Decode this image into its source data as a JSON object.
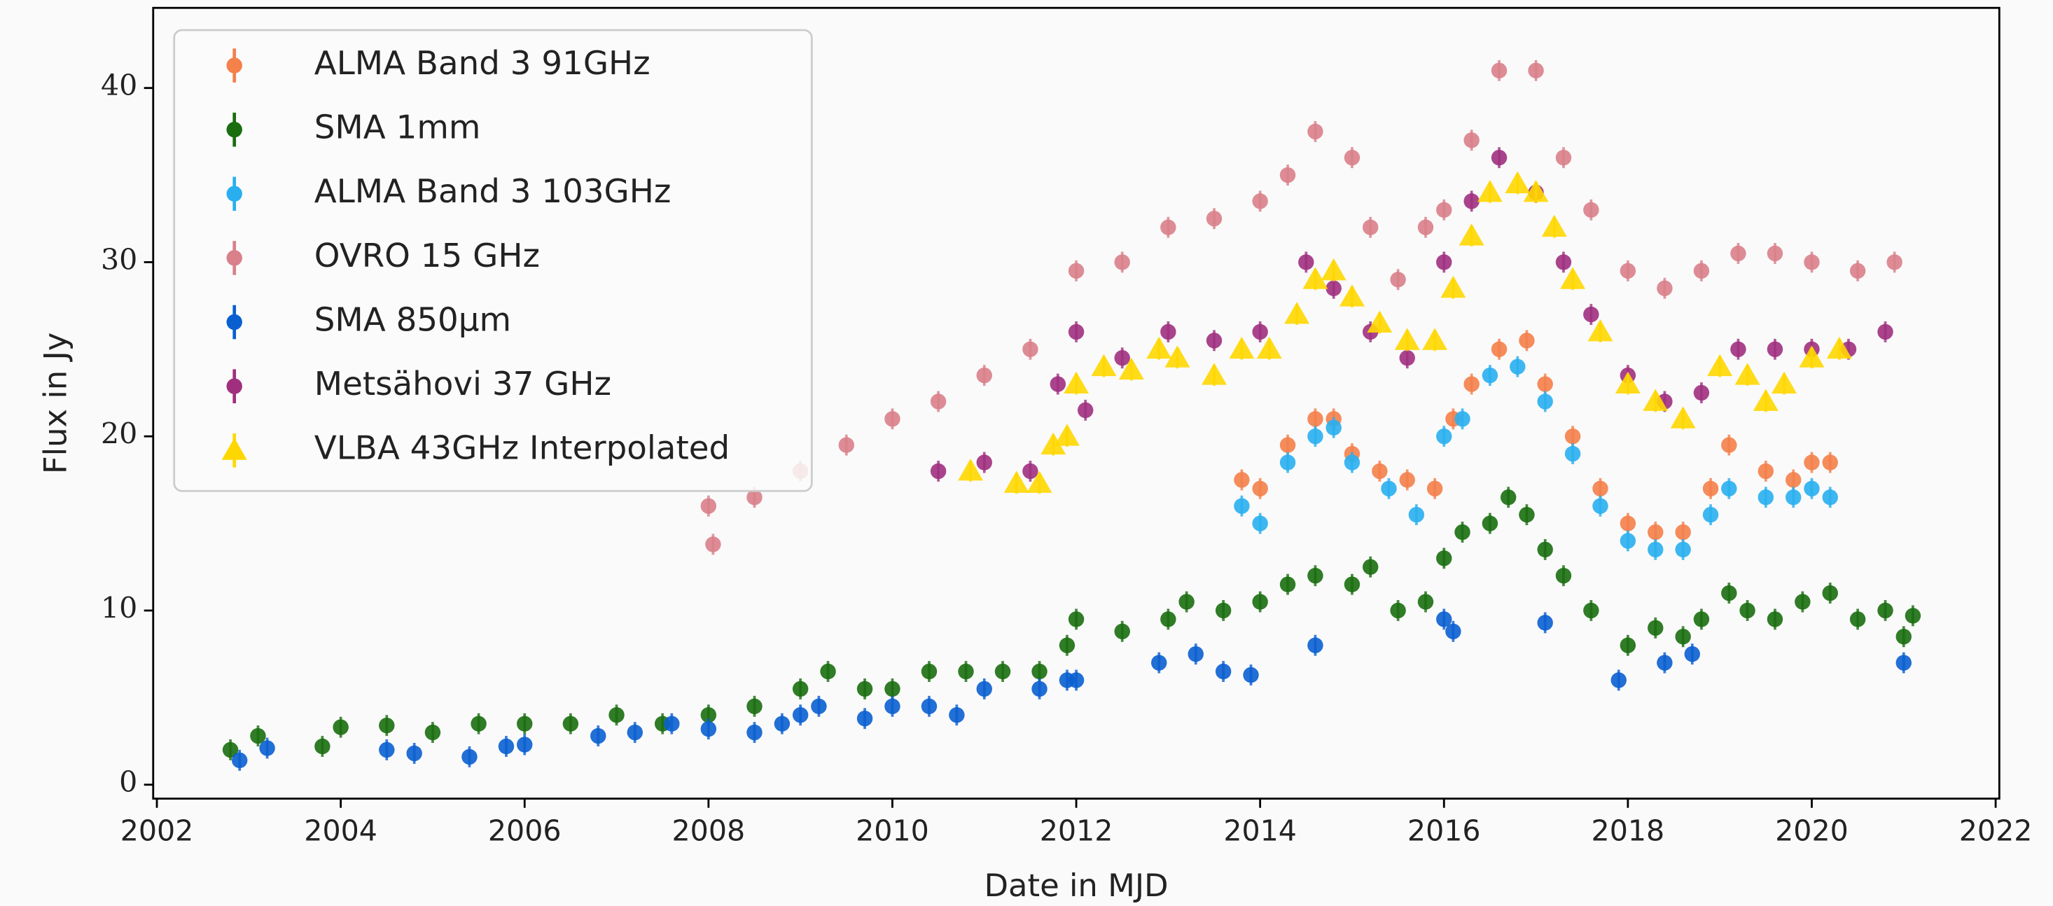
{
  "chart_data": {
    "type": "scatter",
    "xlabel": "Date in MJD",
    "ylabel": "Flux in Jy",
    "xlim": [
      2001.96,
      2022.04
    ],
    "ylim": [
      -0.8,
      44.6
    ],
    "xticks": [
      2002,
      2004,
      2006,
      2008,
      2010,
      2012,
      2014,
      2016,
      2018,
      2020,
      2022
    ],
    "yticks": [
      0,
      10,
      20,
      30,
      40
    ],
    "legend": "upper left",
    "series": [
      {
        "name": "ALMA Band 3 91GHz",
        "color": "#f4804a",
        "marker": "circle",
        "x": [
          2013.8,
          2014,
          2014.3,
          2014.6,
          2014.8,
          2015,
          2015.3,
          2015.6,
          2015.9,
          2016.1,
          2016.3,
          2016.6,
          2016.9,
          2017.1,
          2017.4,
          2017.7,
          2018,
          2018.3,
          2018.6,
          2018.9,
          2019.1,
          2019.5,
          2019.8,
          2020,
          2020.2
        ],
        "values": [
          17.5,
          17,
          19.5,
          21,
          21,
          19,
          18,
          17.5,
          17,
          21,
          23,
          25,
          25.5,
          23,
          20,
          17,
          15,
          14.5,
          14.5,
          17,
          19.5,
          18,
          17.5,
          18.5,
          18.5
        ]
      },
      {
        "name": "SMA 1mm",
        "color": "#1a6e10",
        "marker": "circle",
        "x": [
          2002.8,
          2003.1,
          2003.8,
          2004,
          2004.5,
          2005,
          2005.5,
          2006,
          2006.5,
          2007,
          2007.5,
          2008,
          2008.5,
          2009,
          2009.3,
          2009.7,
          2010,
          2010.4,
          2010.8,
          2011.2,
          2011.6,
          2011.9,
          2012,
          2012.5,
          2013,
          2013.2,
          2013.6,
          2014,
          2014.3,
          2014.6,
          2015,
          2015.2,
          2015.5,
          2015.8,
          2016,
          2016.2,
          2016.5,
          2016.7,
          2016.9,
          2017.1,
          2017.3,
          2017.6,
          2018,
          2018.3,
          2018.6,
          2018.8,
          2019.1,
          2019.3,
          2019.6,
          2019.9,
          2020.2,
          2020.5,
          2020.8,
          2021,
          2021.1
        ],
        "values": [
          2,
          2.8,
          2.2,
          3.3,
          3.4,
          3,
          3.5,
          3.5,
          3.5,
          4,
          3.5,
          4,
          4.5,
          5.5,
          6.5,
          5.5,
          5.5,
          6.5,
          6.5,
          6.5,
          6.5,
          8,
          9.5,
          8.8,
          9.5,
          10.5,
          10,
          10.5,
          11.5,
          12,
          11.5,
          12.5,
          10,
          10.5,
          13,
          14.5,
          15,
          16.5,
          15.5,
          13.5,
          12,
          10,
          8,
          9,
          8.5,
          9.5,
          11,
          10,
          9.5,
          10.5,
          11,
          9.5,
          10,
          8.5,
          9.7
        ]
      },
      {
        "name": "ALMA Band 3 103GHz",
        "color": "#29aff0",
        "marker": "circle",
        "x": [
          2013.8,
          2014,
          2014.3,
          2014.6,
          2014.8,
          2015,
          2015.4,
          2015.7,
          2016,
          2016.2,
          2016.5,
          2016.8,
          2017.1,
          2017.4,
          2017.7,
          2018,
          2018.3,
          2018.6,
          2018.9,
          2019.1,
          2019.5,
          2019.8,
          2020,
          2020.2
        ],
        "values": [
          16,
          15,
          18.5,
          20,
          20.5,
          18.5,
          17,
          15.5,
          20,
          21,
          23.5,
          24,
          22,
          19,
          16,
          14,
          13.5,
          13.5,
          15.5,
          17,
          16.5,
          16.5,
          17,
          16.5
        ]
      },
      {
        "name": "OVRO 15 GHz",
        "color": "#d9808a",
        "marker": "circle",
        "x": [
          2008,
          2008.05,
          2008.5,
          2009,
          2009.5,
          2010,
          2010.5,
          2011,
          2011.5,
          2012,
          2012.5,
          2013,
          2013.5,
          2014,
          2014.3,
          2014.6,
          2015,
          2015.2,
          2015.5,
          2015.8,
          2016,
          2016.3,
          2016.6,
          2017,
          2017.3,
          2017.6,
          2018,
          2018.4,
          2018.8,
          2019.2,
          2019.6,
          2020,
          2020.5,
          2020.9
        ],
        "values": [
          16,
          13.8,
          16.5,
          18,
          19.5,
          21,
          22,
          23.5,
          25,
          29.5,
          30,
          32,
          32.5,
          33.5,
          35,
          37.5,
          36,
          32,
          29,
          32,
          33,
          37,
          41,
          41,
          36,
          33,
          29.5,
          28.5,
          29.5,
          30.5,
          30.5,
          30,
          29.5,
          30
        ]
      },
      {
        "name": "SMA 850μm",
        "color": "#0a5fd0",
        "marker": "circle",
        "x": [
          2002.9,
          2003.2,
          2004.5,
          2004.8,
          2005.4,
          2005.8,
          2006,
          2006.8,
          2007.2,
          2007.6,
          2008,
          2008.5,
          2008.8,
          2009,
          2009.2,
          2009.7,
          2010,
          2010.4,
          2010.7,
          2011,
          2011.6,
          2011.9,
          2012,
          2012.9,
          2013.3,
          2013.6,
          2013.9,
          2014.6,
          2016,
          2016.1,
          2017.1,
          2017.9,
          2018.4,
          2018.7,
          2021
        ],
        "values": [
          1.4,
          2.1,
          2,
          1.8,
          1.6,
          2.2,
          2.3,
          2.8,
          3,
          3.5,
          3.2,
          3,
          3.5,
          4,
          4.5,
          3.8,
          4.5,
          4.5,
          4,
          5.5,
          5.5,
          6,
          6,
          7,
          7.5,
          6.5,
          6.3,
          8,
          9.5,
          8.8,
          9.3,
          6,
          7,
          7.5,
          7
        ]
      },
      {
        "name": "Metsähovi 37 GHz",
        "color": "#a0307f",
        "marker": "circle",
        "x": [
          2010.5,
          2011,
          2011.5,
          2011.8,
          2012,
          2012.1,
          2012.5,
          2013,
          2013.5,
          2014,
          2014.5,
          2014.8,
          2015.2,
          2015.6,
          2016,
          2016.3,
          2016.6,
          2017,
          2017.3,
          2017.6,
          2018,
          2018.4,
          2018.8,
          2019.2,
          2019.6,
          2020,
          2020.4,
          2020.8
        ],
        "values": [
          18,
          18.5,
          18,
          23,
          26,
          21.5,
          24.5,
          26,
          25.5,
          26,
          30,
          28.5,
          26,
          24.5,
          30,
          33.5,
          36,
          34,
          30,
          27,
          23.5,
          22,
          22.5,
          25,
          25,
          25,
          25,
          26
        ]
      },
      {
        "name": "VLBA 43GHz Interpolated",
        "color": "#ffd700",
        "marker": "triangle",
        "x": [
          2010.85,
          2011.35,
          2011.6,
          2011.75,
          2011.9,
          2012,
          2012.3,
          2012.6,
          2012.9,
          2013.1,
          2013.5,
          2013.8,
          2014.1,
          2014.4,
          2014.6,
          2014.8,
          2015,
          2015.3,
          2015.6,
          2015.9,
          2016.1,
          2016.3,
          2016.5,
          2016.8,
          2017,
          2017.2,
          2017.4,
          2017.7,
          2018,
          2018.3,
          2018.6,
          2019,
          2019.3,
          2019.5,
          2019.7,
          2020,
          2020.3
        ],
        "values": [
          18,
          17.3,
          17.3,
          19.5,
          20,
          23,
          24,
          23.8,
          25,
          24.5,
          23.5,
          25,
          25,
          27,
          29,
          29.5,
          28,
          26.5,
          25.5,
          25.5,
          28.5,
          31.5,
          34,
          34.5,
          34,
          32,
          29,
          26,
          23,
          22,
          21,
          24,
          23.5,
          22,
          23,
          24.5,
          25
        ]
      }
    ]
  }
}
